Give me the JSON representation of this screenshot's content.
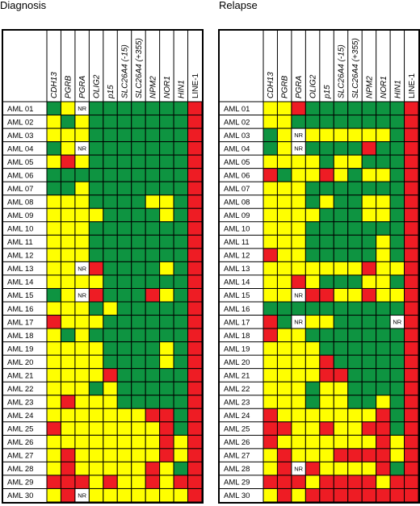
{
  "chart_data": [
    {
      "type": "heatmap",
      "title": "Diagnosis",
      "columns": [
        "CDH13",
        "PGRB",
        "PGRA",
        "OLIG2",
        "p15",
        "SLC26A4 (-15)",
        "SLC26A4 (+355)",
        "NPM2",
        "NOR1",
        "HIN1",
        "LINE-1"
      ],
      "rows": [
        "AML 01",
        "AML 02",
        "AML 03",
        "AML 04",
        "AML 05",
        "AML 06",
        "AML 07",
        "AML 08",
        "AML 09",
        "AML 10",
        "AML 11",
        "AML 12",
        "AML 13",
        "AML 14",
        "AML 15",
        "AML 16",
        "AML 17",
        "AML 18",
        "AML 19",
        "AML 20",
        "AML 21",
        "AML 22",
        "AML 23",
        "AML 24",
        "AML 25",
        "AML 26",
        "AML 27",
        "AML 28",
        "AML 29",
        "AML 30"
      ],
      "legend": {
        "G": "#0e9441",
        "Y": "#ffff00",
        "R": "#ee1c24",
        "N": "NR"
      },
      "cells": [
        [
          "G",
          "Y",
          "N",
          "G",
          "G",
          "G",
          "G",
          "G",
          "G",
          "G",
          "R"
        ],
        [
          "Y",
          "G",
          "Y",
          "G",
          "G",
          "G",
          "G",
          "G",
          "G",
          "G",
          "R"
        ],
        [
          "Y",
          "Y",
          "Y",
          "G",
          "G",
          "G",
          "G",
          "G",
          "G",
          "G",
          "R"
        ],
        [
          "G",
          "Y",
          "N",
          "G",
          "G",
          "G",
          "G",
          "G",
          "G",
          "G",
          "R"
        ],
        [
          "Y",
          "R",
          "Y",
          "G",
          "G",
          "G",
          "G",
          "G",
          "G",
          "G",
          "R"
        ],
        [
          "G",
          "G",
          "G",
          "G",
          "G",
          "G",
          "G",
          "G",
          "G",
          "G",
          "R"
        ],
        [
          "G",
          "G",
          "Y",
          "G",
          "G",
          "G",
          "G",
          "G",
          "G",
          "G",
          "R"
        ],
        [
          "Y",
          "Y",
          "Y",
          "G",
          "G",
          "G",
          "G",
          "Y",
          "Y",
          "G",
          "R"
        ],
        [
          "Y",
          "Y",
          "Y",
          "Y",
          "G",
          "G",
          "G",
          "G",
          "Y",
          "G",
          "R"
        ],
        [
          "Y",
          "Y",
          "Y",
          "G",
          "G",
          "G",
          "G",
          "G",
          "G",
          "G",
          "R"
        ],
        [
          "Y",
          "Y",
          "Y",
          "G",
          "G",
          "G",
          "G",
          "G",
          "G",
          "G",
          "R"
        ],
        [
          "Y",
          "Y",
          "Y",
          "G",
          "G",
          "G",
          "G",
          "G",
          "G",
          "G",
          "R"
        ],
        [
          "Y",
          "Y",
          "N",
          "R",
          "G",
          "G",
          "G",
          "G",
          "Y",
          "G",
          "R"
        ],
        [
          "Y",
          "Y",
          "Y",
          "Y",
          "G",
          "G",
          "G",
          "G",
          "G",
          "G",
          "R"
        ],
        [
          "G",
          "Y",
          "N",
          "R",
          "G",
          "G",
          "G",
          "R",
          "Y",
          "G",
          "R"
        ],
        [
          "Y",
          "Y",
          "Y",
          "G",
          "Y",
          "G",
          "G",
          "G",
          "G",
          "G",
          "R"
        ],
        [
          "R",
          "Y",
          "Y",
          "Y",
          "G",
          "G",
          "G",
          "G",
          "G",
          "G",
          "R"
        ],
        [
          "Y",
          "G",
          "Y",
          "G",
          "G",
          "G",
          "G",
          "G",
          "G",
          "G",
          "R"
        ],
        [
          "Y",
          "Y",
          "Y",
          "Y",
          "G",
          "G",
          "G",
          "G",
          "Y",
          "G",
          "R"
        ],
        [
          "Y",
          "Y",
          "Y",
          "Y",
          "G",
          "G",
          "G",
          "G",
          "Y",
          "G",
          "R"
        ],
        [
          "Y",
          "Y",
          "Y",
          "Y",
          "R",
          "G",
          "G",
          "G",
          "G",
          "G",
          "R"
        ],
        [
          "Y",
          "Y",
          "Y",
          "G",
          "Y",
          "G",
          "G",
          "G",
          "G",
          "G",
          "R"
        ],
        [
          "Y",
          "R",
          "Y",
          "Y",
          "Y",
          "G",
          "G",
          "G",
          "G",
          "G",
          "R"
        ],
        [
          "Y",
          "Y",
          "Y",
          "Y",
          "Y",
          "Y",
          "Y",
          "R",
          "R",
          "G",
          "R"
        ],
        [
          "R",
          "Y",
          "Y",
          "Y",
          "Y",
          "Y",
          "Y",
          "Y",
          "R",
          "G",
          "R"
        ],
        [
          "Y",
          "Y",
          "Y",
          "Y",
          "Y",
          "Y",
          "Y",
          "Y",
          "R",
          "Y",
          "R"
        ],
        [
          "Y",
          "R",
          "Y",
          "Y",
          "Y",
          "Y",
          "Y",
          "Y",
          "R",
          "Y",
          "R"
        ],
        [
          "Y",
          "R",
          "Y",
          "Y",
          "Y",
          "Y",
          "Y",
          "R",
          "Y",
          "G",
          "R"
        ],
        [
          "R",
          "R",
          "R",
          "Y",
          "R",
          "Y",
          "Y",
          "R",
          "Y",
          "R",
          "R"
        ],
        [
          "Y",
          "R",
          "N",
          "Y",
          "Y",
          "Y",
          "Y",
          "Y",
          "Y",
          "Y",
          "R"
        ]
      ]
    },
    {
      "type": "heatmap",
      "title": "Relapse",
      "columns": [
        "CDH13",
        "PGRB",
        "PGRA",
        "OLIG2",
        "p15",
        "SLC26A4 (-15)",
        "SLC26A4 (+355)",
        "NPM2",
        "NOR1",
        "HIN1",
        "LINE-1"
      ],
      "rows": [
        "AML 01",
        "AML 02",
        "AML 03",
        "AML 04",
        "AML 05",
        "AML 06",
        "AML 07",
        "AML 08",
        "AML 09",
        "AML 10",
        "AML 11",
        "AML 12",
        "AML 13",
        "AML 14",
        "AML 15",
        "AML 16",
        "AML 17",
        "AML 18",
        "AML 19",
        "AML 20",
        "AML 21",
        "AML 22",
        "AML 23",
        "AML 24",
        "AML 25",
        "AML 26",
        "AML 27",
        "AML 28",
        "AML 29",
        "AML 30"
      ],
      "legend": {
        "G": "#0e9441",
        "Y": "#ffff00",
        "R": "#ee1c24",
        "N": "NR"
      },
      "cells": [
        [
          "Y",
          "Y",
          "R",
          "G",
          "G",
          "G",
          "G",
          "G",
          "G",
          "G",
          "R"
        ],
        [
          "Y",
          "Y",
          "G",
          "G",
          "G",
          "G",
          "G",
          "G",
          "G",
          "G",
          "R"
        ],
        [
          "G",
          "Y",
          "N",
          "Y",
          "Y",
          "Y",
          "Y",
          "Y",
          "Y",
          "G",
          "R"
        ],
        [
          "G",
          "Y",
          "N",
          "G",
          "G",
          "G",
          "G",
          "R",
          "G",
          "G",
          "R"
        ],
        [
          "Y",
          "Y",
          "Y",
          "Y",
          "G",
          "Y",
          "Y",
          "G",
          "G",
          "G",
          "R"
        ],
        [
          "R",
          "G",
          "Y",
          "Y",
          "R",
          "Y",
          "G",
          "Y",
          "Y",
          "G",
          "R"
        ],
        [
          "Y",
          "Y",
          "Y",
          "G",
          "G",
          "G",
          "G",
          "G",
          "G",
          "G",
          "R"
        ],
        [
          "Y",
          "Y",
          "Y",
          "G",
          "Y",
          "G",
          "G",
          "Y",
          "Y",
          "G",
          "R"
        ],
        [
          "Y",
          "Y",
          "Y",
          "Y",
          "G",
          "G",
          "G",
          "Y",
          "Y",
          "G",
          "R"
        ],
        [
          "Y",
          "Y",
          "Y",
          "G",
          "G",
          "G",
          "G",
          "G",
          "G",
          "G",
          "R"
        ],
        [
          "Y",
          "Y",
          "Y",
          "G",
          "G",
          "G",
          "G",
          "G",
          "Y",
          "G",
          "R"
        ],
        [
          "R",
          "Y",
          "Y",
          "G",
          "G",
          "G",
          "G",
          "G",
          "Y",
          "G",
          "R"
        ],
        [
          "Y",
          "Y",
          "Y",
          "Y",
          "Y",
          "Y",
          "Y",
          "R",
          "Y",
          "Y",
          "R"
        ],
        [
          "Y",
          "Y",
          "R",
          "Y",
          "G",
          "G",
          "G",
          "Y",
          "Y",
          "G",
          "R"
        ],
        [
          "Y",
          "Y",
          "N",
          "R",
          "R",
          "Y",
          "Y",
          "R",
          "Y",
          "Y",
          "R"
        ],
        [
          "G",
          "G",
          "G",
          "G",
          "G",
          "G",
          "G",
          "G",
          "G",
          "G",
          "R"
        ],
        [
          "R",
          "G",
          "N",
          "Y",
          "Y",
          "G",
          "G",
          "G",
          "G",
          "N",
          "R"
        ],
        [
          "R",
          "Y",
          "Y",
          "G",
          "G",
          "G",
          "G",
          "G",
          "G",
          "G",
          "R"
        ],
        [
          "Y",
          "Y",
          "Y",
          "Y",
          "G",
          "G",
          "G",
          "G",
          "G",
          "G",
          "R"
        ],
        [
          "Y",
          "Y",
          "Y",
          "Y",
          "R",
          "G",
          "G",
          "G",
          "G",
          "G",
          "R"
        ],
        [
          "Y",
          "Y",
          "Y",
          "Y",
          "R",
          "R",
          "G",
          "G",
          "G",
          "G",
          "R"
        ],
        [
          "Y",
          "Y",
          "Y",
          "G",
          "Y",
          "Y",
          "G",
          "G",
          "G",
          "G",
          "R"
        ],
        [
          "Y",
          "Y",
          "Y",
          "G",
          "Y",
          "Y",
          "G",
          "G",
          "Y",
          "G",
          "R"
        ],
        [
          "R",
          "Y",
          "Y",
          "Y",
          "Y",
          "Y",
          "Y",
          "Y",
          "R",
          "G",
          "R"
        ],
        [
          "R",
          "R",
          "Y",
          "Y",
          "R",
          "Y",
          "Y",
          "R",
          "R",
          "G",
          "R"
        ],
        [
          "R",
          "Y",
          "Y",
          "Y",
          "Y",
          "Y",
          "Y",
          "Y",
          "R",
          "Y",
          "R"
        ],
        [
          "Y",
          "R",
          "Y",
          "Y",
          "Y",
          "R",
          "R",
          "R",
          "R",
          "Y",
          "R"
        ],
        [
          "Y",
          "R",
          "N",
          "R",
          "Y",
          "Y",
          "Y",
          "Y",
          "R",
          "G",
          "R"
        ],
        [
          "R",
          "R",
          "R",
          "Y",
          "R",
          "R",
          "R",
          "R",
          "Y",
          "R",
          "R"
        ],
        [
          "Y",
          "R",
          "Y",
          "R",
          "R",
          "R",
          "R",
          "R",
          "R",
          "R",
          "R"
        ]
      ]
    }
  ]
}
